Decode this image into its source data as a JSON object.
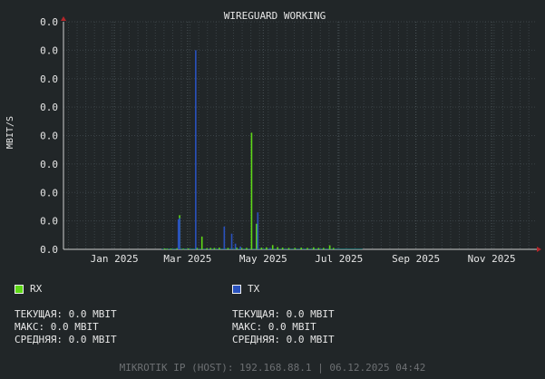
{
  "chart_data": {
    "type": "bar",
    "title": "WIREGUARD WORKING",
    "ylabel": "MBIT/S",
    "xlabel": "",
    "y_tick_labels": [
      "0.0",
      "0.0",
      "0.0",
      "0.0",
      "0.0",
      "0.0",
      "0.0",
      "0.0",
      "0.0"
    ],
    "ylim": [
      0,
      8
    ],
    "x_tick_labels": [
      "Jan 2025",
      "Mar 2025",
      "May 2025",
      "Jul 2025",
      "Sep 2025",
      "Nov 2025"
    ],
    "x_tick_dates": [
      "2025-01-01",
      "2025-03-01",
      "2025-05-01",
      "2025-07-01",
      "2025-09-01",
      "2025-11-01"
    ],
    "xlim": [
      "2024-11-21",
      "2025-12-06"
    ],
    "grid": true,
    "legend_placement": "bottom",
    "series": [
      {
        "name": "RX",
        "color": "#5ed817",
        "points": [
          [
            "2025-02-10",
            0.03
          ],
          [
            "2025-02-12",
            0.02
          ],
          [
            "2025-02-15",
            0.02
          ],
          [
            "2025-02-20",
            0.04
          ],
          [
            "2025-02-22",
            1.2
          ],
          [
            "2025-02-25",
            0.02
          ],
          [
            "2025-03-01",
            0.03
          ],
          [
            "2025-03-08",
            0.05
          ],
          [
            "2025-03-12",
            0.45
          ],
          [
            "2025-03-16",
            0.04
          ],
          [
            "2025-03-19",
            0.05
          ],
          [
            "2025-03-22",
            0.05
          ],
          [
            "2025-03-26",
            0.06
          ],
          [
            "2025-03-30",
            0.06
          ],
          [
            "2025-04-02",
            0.05
          ],
          [
            "2025-04-05",
            0.07
          ],
          [
            "2025-04-09",
            0.06
          ],
          [
            "2025-04-13",
            0.05
          ],
          [
            "2025-04-17",
            0.05
          ],
          [
            "2025-04-21",
            4.1
          ],
          [
            "2025-04-25",
            0.9
          ],
          [
            "2025-04-29",
            0.06
          ],
          [
            "2025-05-03",
            0.07
          ],
          [
            "2025-05-08",
            0.15
          ],
          [
            "2025-05-12",
            0.08
          ],
          [
            "2025-05-16",
            0.06
          ],
          [
            "2025-05-21",
            0.05
          ],
          [
            "2025-05-26",
            0.05
          ],
          [
            "2025-05-31",
            0.06
          ],
          [
            "2025-06-05",
            0.05
          ],
          [
            "2025-06-10",
            0.07
          ],
          [
            "2025-06-14",
            0.05
          ],
          [
            "2025-06-18",
            0.05
          ],
          [
            "2025-06-23",
            0.14
          ],
          [
            "2025-06-26",
            0.05
          ]
        ]
      },
      {
        "name": "TX",
        "color": "#2a52be",
        "points": [
          [
            "2025-02-21",
            1.05
          ],
          [
            "2025-02-22",
            1.1
          ],
          [
            "2025-03-07",
            7.0
          ],
          [
            "2025-03-30",
            0.8
          ],
          [
            "2025-04-05",
            0.55
          ],
          [
            "2025-04-08",
            0.2
          ],
          [
            "2025-04-12",
            0.1
          ],
          [
            "2025-04-26",
            1.3
          ],
          [
            "2025-05-06",
            0.05
          ]
        ]
      }
    ],
    "baseline": {
      "name": "baseline",
      "start": "2025-02-08",
      "end": "2025-07-20",
      "value": 0.03,
      "color": "#1f6d6d"
    }
  },
  "legend": [
    {
      "name": "RX",
      "color": "#5ed817",
      "stats": [
        "ТЕКУЩАЯ: 0.0 MBIT",
        "МАКС: 0.0 MBIT",
        "СРЕДНЯЯ: 0.0 MBIT"
      ]
    },
    {
      "name": "TX",
      "color": "#2a52be",
      "stats": [
        "ТЕКУЩАЯ: 0.0 MBIT",
        "МАКС: 0.0 MBIT",
        "СРЕДНЯЯ: 0.0 MBIT"
      ]
    }
  ],
  "footer": "MIKROTIK IP (HOST): 192.168.88.1 | 06.12.2025 04:42",
  "colors": {
    "background": "#212628",
    "grid": "#3a4246",
    "axis_arrow": "#b3262a",
    "text": "#e6e6e6",
    "footer": "#6d7073"
  }
}
